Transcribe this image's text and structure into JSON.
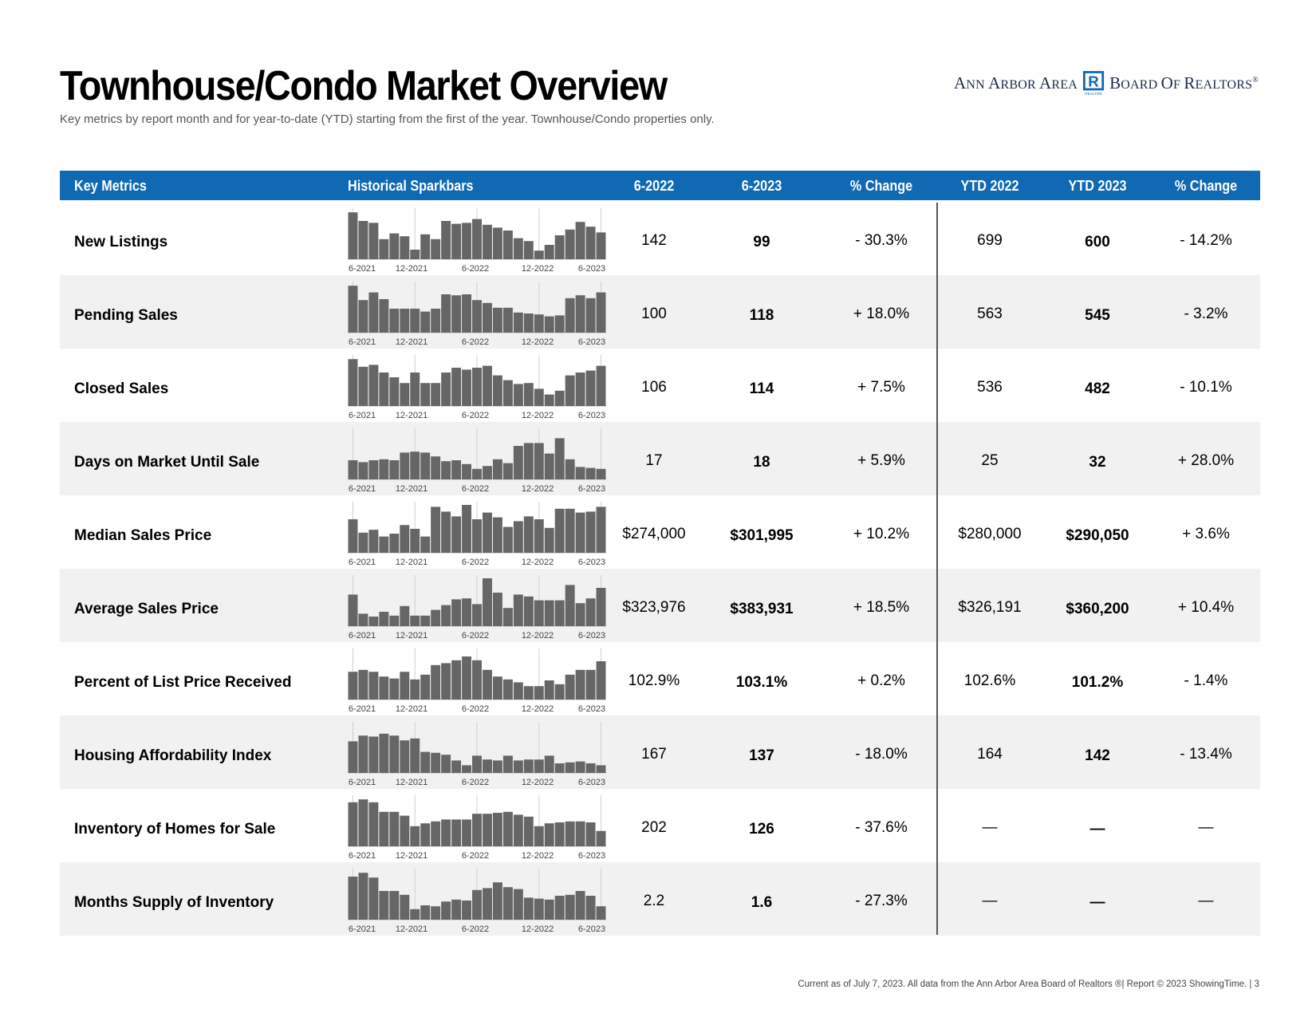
{
  "title": "Townhouse/Condo Market Overview",
  "subtitle": "Key metrics by report month and for year-to-date (YTD) starting from the first of the year. Townhouse/Condo properties only.",
  "logo": {
    "left_big": "A",
    "left_rest": "NN ",
    "left_big2": "A",
    "left_rest2": "RBOR ",
    "left_big3": "A",
    "left_rest3": "REA",
    "right_big": "B",
    "right_rest": "OARD ",
    "right_big2": "O",
    "right_rest2": "F ",
    "right_big3": "R",
    "right_rest3": "EALTORS",
    "reg": "®",
    "mark_letter": "R",
    "mark_sub": "REALTOR",
    "color": "#1168b3"
  },
  "header": {
    "metrics": "Key Metrics",
    "spark": "Historical Sparkbars",
    "p1": "6-2022",
    "p2": "6-2023",
    "chg1": "% Change",
    "ytd1": "YTD 2022",
    "ytd2": "YTD 2023",
    "chg2": "% Change"
  },
  "spark_axis": [
    "6-2021",
    "12-2021",
    "6-2022",
    "12-2022",
    "6-2023"
  ],
  "colors": {
    "header_bg": "#1168b3",
    "bar": "#666666",
    "alt_row": "#f1f1f1"
  },
  "rows": [
    {
      "metric": "New Listings",
      "p1": "142",
      "p2": "99",
      "chg1": "- 30.3%",
      "ytd1": "699",
      "ytd2": "600",
      "chg2": "- 14.2%",
      "bars": [
        0.98,
        0.8,
        0.76,
        0.42,
        0.54,
        0.48,
        0.2,
        0.52,
        0.42,
        0.8,
        0.74,
        0.76,
        0.84,
        0.72,
        0.66,
        0.6,
        0.44,
        0.38,
        0.18,
        0.3,
        0.5,
        0.62,
        0.78,
        0.68,
        0.56
      ]
    },
    {
      "metric": "Pending Sales",
      "p1": "100",
      "p2": "118",
      "chg1": "+ 18.0%",
      "ytd1": "563",
      "ytd2": "545",
      "chg2": "- 3.2%",
      "bars": [
        0.98,
        0.68,
        0.84,
        0.7,
        0.5,
        0.5,
        0.5,
        0.44,
        0.5,
        0.8,
        0.78,
        0.8,
        0.68,
        0.62,
        0.52,
        0.52,
        0.42,
        0.4,
        0.38,
        0.34,
        0.36,
        0.72,
        0.78,
        0.72,
        0.84
      ]
    },
    {
      "metric": "Closed Sales",
      "p1": "106",
      "p2": "114",
      "chg1": "+ 7.5%",
      "ytd1": "536",
      "ytd2": "482",
      "chg2": "- 10.1%",
      "bars": [
        0.98,
        0.82,
        0.86,
        0.7,
        0.6,
        0.48,
        0.7,
        0.48,
        0.48,
        0.7,
        0.8,
        0.76,
        0.8,
        0.84,
        0.64,
        0.54,
        0.46,
        0.48,
        0.36,
        0.24,
        0.32,
        0.64,
        0.7,
        0.74,
        0.84
      ]
    },
    {
      "metric": "Days on Market Until Sale",
      "p1": "17",
      "p2": "18",
      "chg1": "+ 5.9%",
      "ytd1": "25",
      "ytd2": "32",
      "chg2": "+ 28.0%",
      "bars": [
        0.4,
        0.36,
        0.4,
        0.42,
        0.4,
        0.56,
        0.58,
        0.56,
        0.48,
        0.38,
        0.4,
        0.32,
        0.22,
        0.28,
        0.42,
        0.34,
        0.7,
        0.76,
        0.76,
        0.54,
        0.86,
        0.42,
        0.26,
        0.24,
        0.22
      ]
    },
    {
      "metric": "Median Sales Price",
      "p1": "$274,000",
      "p2": "$301,995",
      "chg1": "+ 10.2%",
      "ytd1": "$280,000",
      "ytd2": "$290,050",
      "chg2": "+ 3.6%",
      "bars": [
        0.7,
        0.42,
        0.48,
        0.34,
        0.4,
        0.58,
        0.5,
        0.34,
        0.96,
        0.86,
        0.76,
        1.0,
        0.7,
        0.84,
        0.74,
        0.54,
        0.66,
        0.76,
        0.7,
        0.52,
        0.92,
        0.92,
        0.84,
        0.86,
        0.96
      ]
    },
    {
      "metric": "Average Sales Price",
      "p1": "$323,976",
      "p2": "$383,931",
      "chg1": "+ 18.5%",
      "ytd1": "$326,191",
      "ytd2": "$360,200",
      "chg2": "+ 10.4%",
      "bars": [
        0.66,
        0.26,
        0.2,
        0.3,
        0.22,
        0.42,
        0.22,
        0.22,
        0.34,
        0.44,
        0.56,
        0.58,
        0.46,
        1.0,
        0.7,
        0.38,
        0.66,
        0.62,
        0.54,
        0.54,
        0.54,
        0.86,
        0.48,
        0.58,
        0.8
      ]
    },
    {
      "metric": "Percent of List Price Received",
      "p1": "102.9%",
      "p2": "103.1%",
      "chg1": "+ 0.2%",
      "ytd1": "102.6%",
      "ytd2": "101.2%",
      "chg2": "- 1.4%",
      "bars": [
        0.58,
        0.62,
        0.58,
        0.48,
        0.44,
        0.58,
        0.42,
        0.52,
        0.72,
        0.76,
        0.82,
        0.9,
        0.82,
        0.62,
        0.48,
        0.42,
        0.36,
        0.28,
        0.28,
        0.4,
        0.32,
        0.52,
        0.62,
        0.62,
        0.8
      ]
    },
    {
      "metric": "Housing Affordability Index",
      "p1": "167",
      "p2": "137",
      "chg1": "- 18.0%",
      "ytd1": "164",
      "ytd2": "142",
      "chg2": "- 13.4%",
      "bars": [
        0.66,
        0.78,
        0.76,
        0.82,
        0.78,
        0.68,
        0.72,
        0.44,
        0.42,
        0.38,
        0.26,
        0.16,
        0.36,
        0.28,
        0.26,
        0.36,
        0.26,
        0.28,
        0.28,
        0.36,
        0.2,
        0.22,
        0.24,
        0.2,
        0.16
      ]
    },
    {
      "metric": "Inventory of Homes for Sale",
      "p1": "202",
      "p2": "126",
      "chg1": "- 37.6%",
      "ytd1": "—",
      "ytd2": "—",
      "chg2": "—",
      "bars": [
        0.92,
        0.98,
        0.92,
        0.72,
        0.72,
        0.64,
        0.42,
        0.48,
        0.52,
        0.56,
        0.56,
        0.56,
        0.68,
        0.68,
        0.7,
        0.72,
        0.66,
        0.62,
        0.42,
        0.48,
        0.5,
        0.52,
        0.52,
        0.5,
        0.32
      ]
    },
    {
      "metric": "Months Supply of Inventory",
      "p1": "2.2",
      "p2": "1.6",
      "chg1": "- 27.3%",
      "ytd1": "—",
      "ytd2": "—",
      "chg2": "—",
      "bars": [
        0.9,
        0.98,
        0.88,
        0.6,
        0.6,
        0.52,
        0.22,
        0.3,
        0.28,
        0.38,
        0.42,
        0.4,
        0.62,
        0.66,
        0.78,
        0.68,
        0.64,
        0.46,
        0.44,
        0.42,
        0.5,
        0.52,
        0.6,
        0.5,
        0.28
      ]
    }
  ],
  "footer": "Current as of July 7, 2023. All data from the Ann Arbor Area Board of Realtors ®| Report © 2023 ShowingTime.  |  3"
}
